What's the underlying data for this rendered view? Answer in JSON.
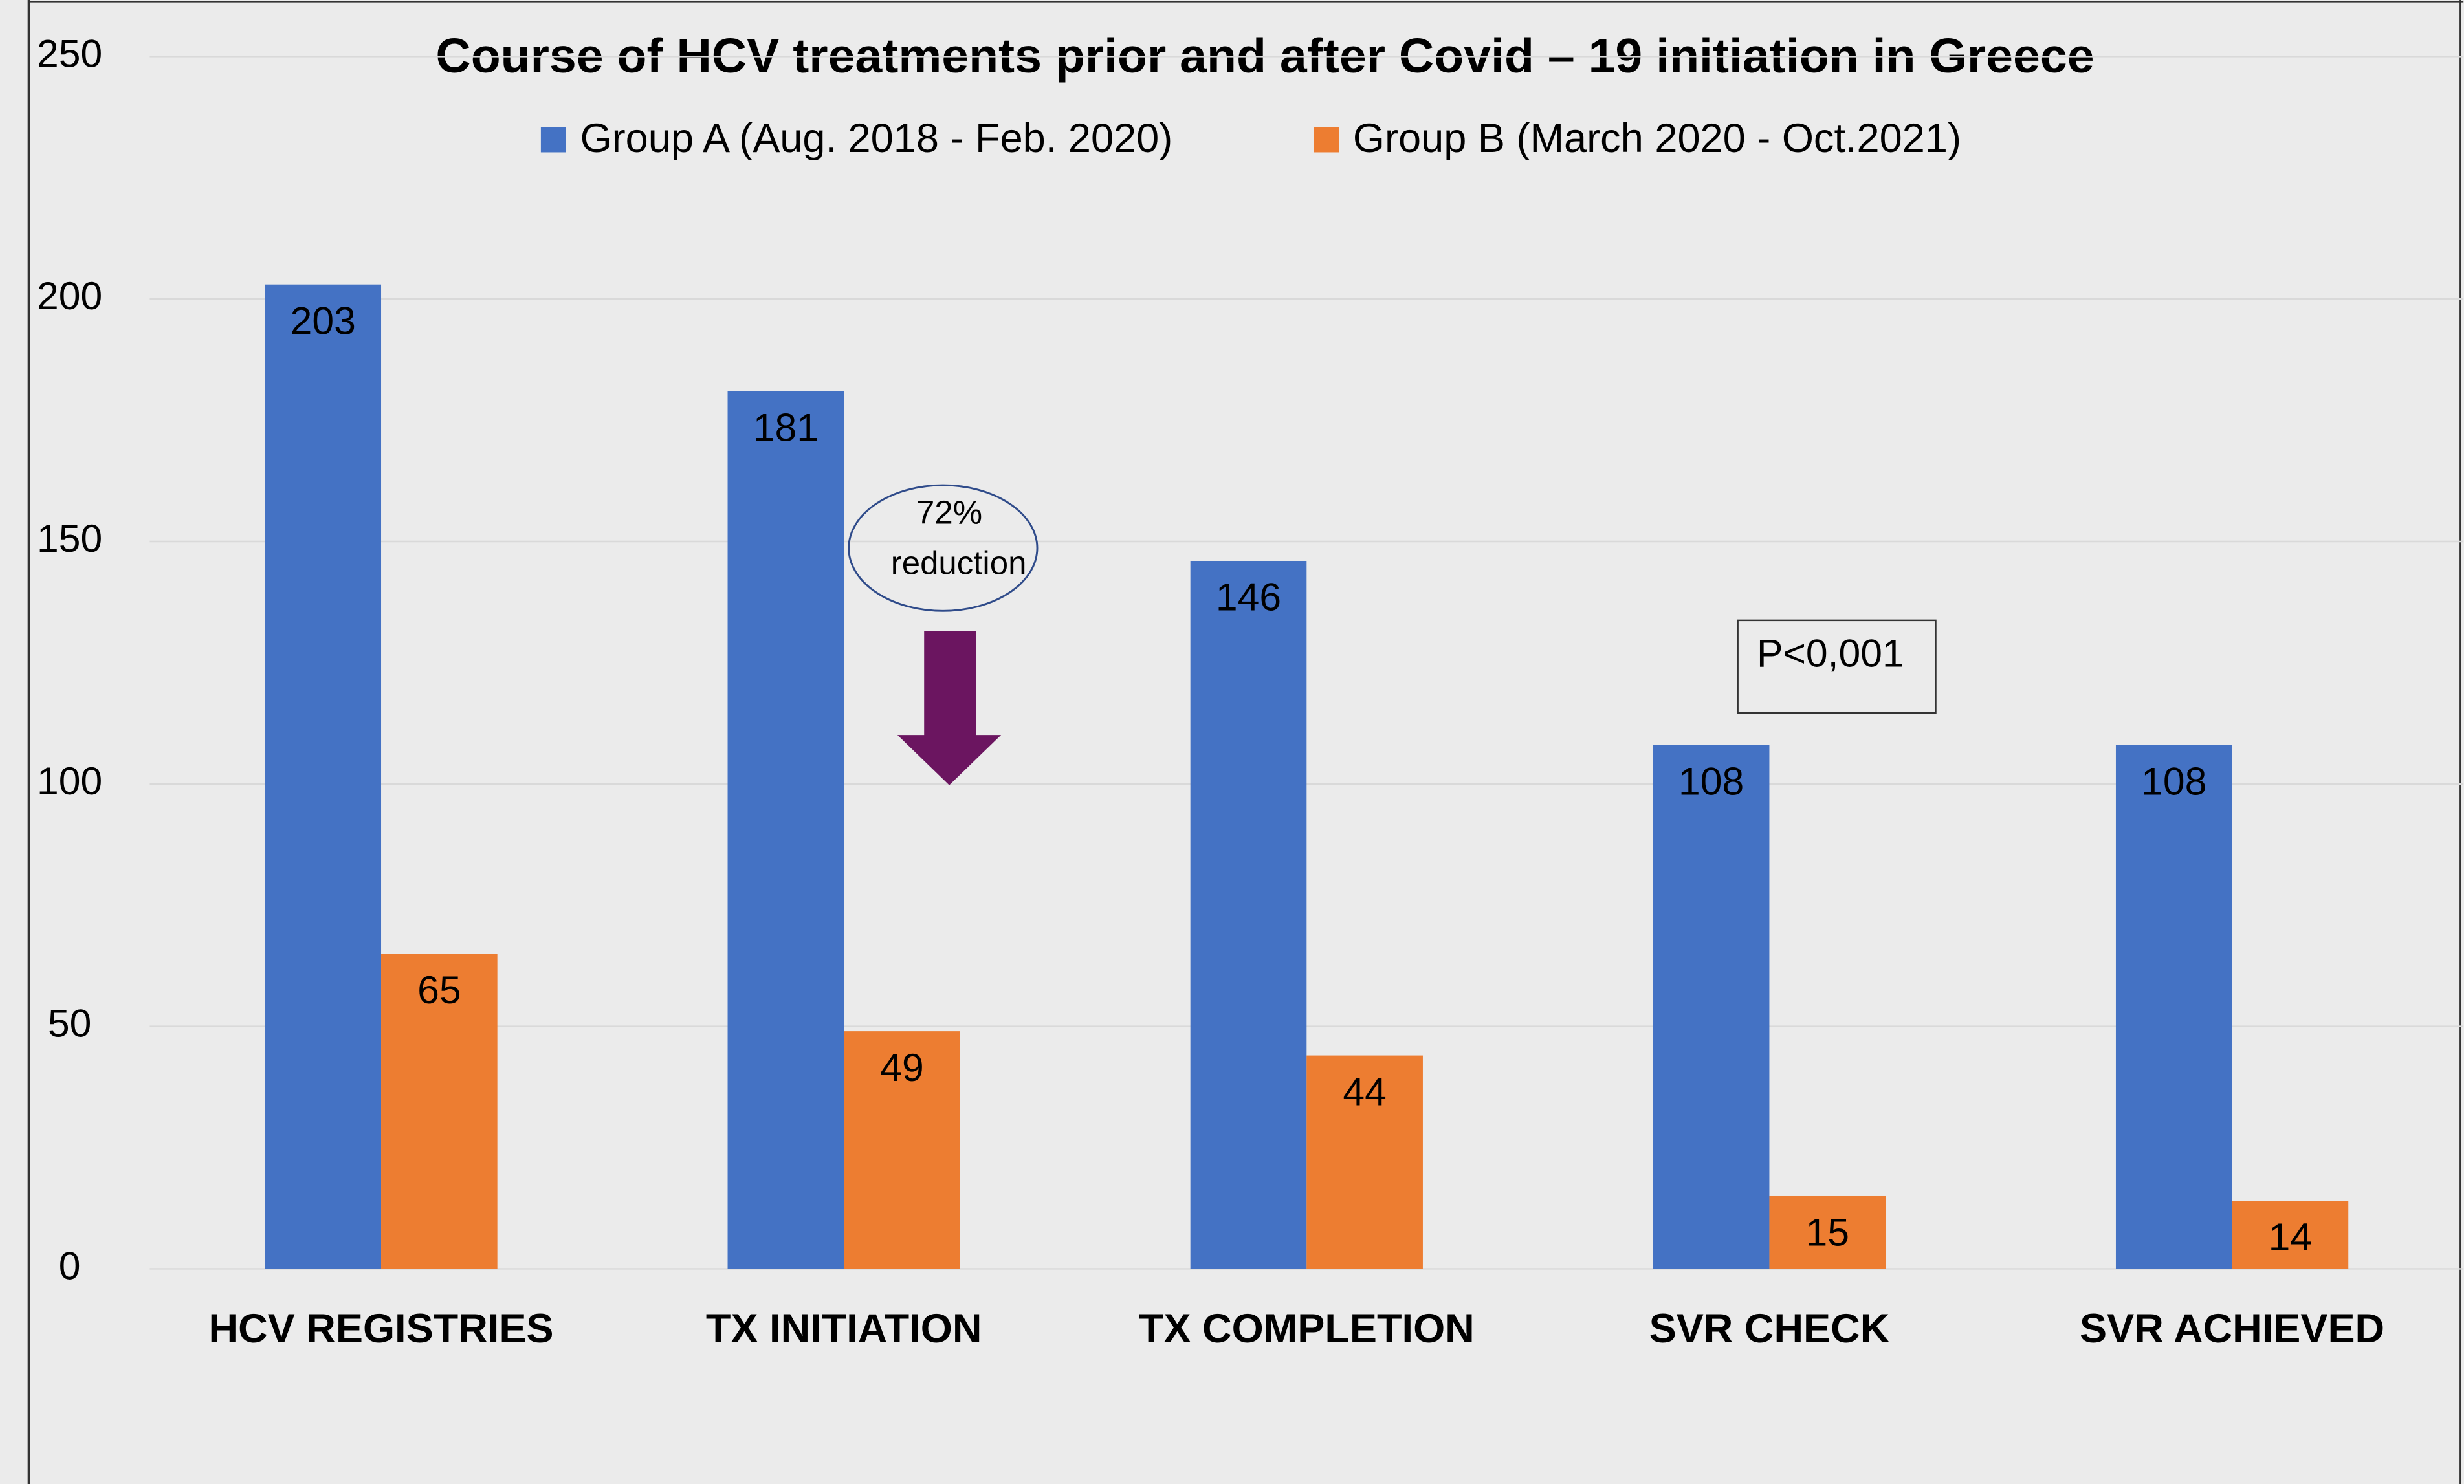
{
  "chart_data": {
    "type": "bar",
    "title": "Course of HCV treatments prior and after Covid – 19 initiation in Greece",
    "categories": [
      "HCV REGISTRIES",
      "TX INITIATION",
      "TX COMPLETION",
      "SVR CHECK",
      "SVR ACHIEVED"
    ],
    "series": [
      {
        "name": "Group A (Aug. 2018 - Feb. 2020)",
        "color": "#4472c4",
        "values": [
          203,
          181,
          146,
          108,
          108
        ]
      },
      {
        "name": "Group B (March 2020 - Oct.2021)",
        "color": "#ed7d31",
        "values": [
          65,
          49,
          44,
          15,
          14
        ]
      }
    ],
    "ylim": [
      0,
      250
    ],
    "yticks": [
      0,
      50,
      100,
      150,
      200,
      250
    ],
    "grid": true,
    "legend": "top",
    "reduction_note": [
      "72%",
      "reduction"
    ],
    "p_value": "P<0,001"
  }
}
